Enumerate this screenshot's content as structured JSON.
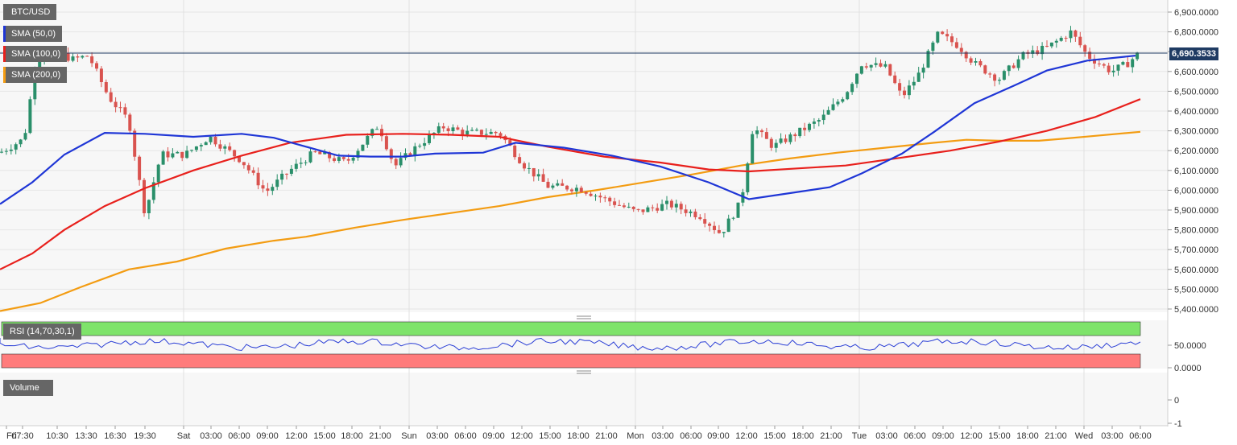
{
  "chart_data": {
    "type": "candlestick",
    "symbol": "BTC/USD",
    "last_price": 6690.3533,
    "last_price_label": "6,690.3533",
    "indicators": [
      {
        "name": "SMA (50,0)",
        "color": "#1f36d6"
      },
      {
        "name": "SMA (100,0)",
        "color": "#e8201c"
      },
      {
        "name": "SMA (200,0)",
        "color": "#f39c12"
      }
    ],
    "price_axis": {
      "min": 5400,
      "max": 6900,
      "ticks": [
        "6,900.0000",
        "6,800.0000",
        "6,700.0000",
        "6,600.0000",
        "6,500.0000",
        "6,400.0000",
        "6,300.0000",
        "6,200.0000",
        "6,100.0000",
        "6,000.0000",
        "5,900.0000",
        "5,800.0000",
        "5,700.0000",
        "5,600.0000",
        "5,500.0000",
        "5,400.0000"
      ]
    },
    "time_axis": {
      "labels": [
        "Fri",
        "07:30",
        "10:30",
        "13:30",
        "16:30",
        "19:30",
        "Sat",
        "03:00",
        "06:00",
        "09:00",
        "12:00",
        "15:00",
        "18:00",
        "21:00",
        "Sun",
        "03:00",
        "06:00",
        "09:00",
        "12:00",
        "15:00",
        "18:00",
        "21:00",
        "Mon",
        "03:00",
        "06:00",
        "09:00",
        "12:00",
        "15:00",
        "18:00",
        "21:00",
        "Tue",
        "03:00",
        "06:00",
        "09:00",
        "12:00",
        "15:00",
        "18:00",
        "21:00",
        "Wed",
        "03:00",
        "06:00"
      ]
    },
    "sma_series": {
      "sma50": [
        [
          0,
          5930
        ],
        [
          40,
          6040
        ],
        [
          80,
          6180
        ],
        [
          130,
          6290
        ],
        [
          180,
          6285
        ],
        [
          240,
          6270
        ],
        [
          300,
          6285
        ],
        [
          340,
          6265
        ],
        [
          380,
          6220
        ],
        [
          420,
          6175
        ],
        [
          460,
          6170
        ],
        [
          500,
          6170
        ],
        [
          540,
          6185
        ],
        [
          600,
          6190
        ],
        [
          640,
          6240
        ],
        [
          700,
          6215
        ],
        [
          760,
          6175
        ],
        [
          820,
          6120
        ],
        [
          880,
          6040
        ],
        [
          930,
          5955
        ],
        [
          980,
          5985
        ],
        [
          1030,
          6015
        ],
        [
          1070,
          6085
        ],
        [
          1120,
          6185
        ],
        [
          1160,
          6295
        ],
        [
          1210,
          6440
        ],
        [
          1260,
          6530
        ],
        [
          1300,
          6605
        ],
        [
          1350,
          6655
        ],
        [
          1410,
          6680
        ]
      ],
      "sma100": [
        [
          0,
          5600
        ],
        [
          40,
          5680
        ],
        [
          80,
          5800
        ],
        [
          130,
          5920
        ],
        [
          180,
          6010
        ],
        [
          240,
          6100
        ],
        [
          300,
          6175
        ],
        [
          360,
          6240
        ],
        [
          430,
          6280
        ],
        [
          500,
          6285
        ],
        [
          560,
          6280
        ],
        [
          620,
          6270
        ],
        [
          680,
          6220
        ],
        [
          750,
          6170
        ],
        [
          820,
          6140
        ],
        [
          880,
          6105
        ],
        [
          930,
          6095
        ],
        [
          990,
          6110
        ],
        [
          1050,
          6125
        ],
        [
          1120,
          6165
        ],
        [
          1180,
          6200
        ],
        [
          1240,
          6245
        ],
        [
          1300,
          6300
        ],
        [
          1360,
          6370
        ],
        [
          1416,
          6460
        ]
      ],
      "sma200": [
        [
          0,
          5390
        ],
        [
          50,
          5430
        ],
        [
          100,
          5510
        ],
        [
          160,
          5600
        ],
        [
          220,
          5640
        ],
        [
          280,
          5705
        ],
        [
          340,
          5745
        ],
        [
          380,
          5765
        ],
        [
          440,
          5810
        ],
        [
          500,
          5850
        ],
        [
          560,
          5885
        ],
        [
          620,
          5920
        ],
        [
          680,
          5965
        ],
        [
          740,
          6000
        ],
        [
          800,
          6040
        ],
        [
          860,
          6080
        ],
        [
          920,
          6125
        ],
        [
          980,
          6160
        ],
        [
          1040,
          6190
        ],
        [
          1100,
          6215
        ],
        [
          1160,
          6240
        ],
        [
          1200,
          6255
        ],
        [
          1240,
          6250
        ],
        [
          1290,
          6250
        ],
        [
          1320,
          6260
        ],
        [
          1360,
          6275
        ],
        [
          1416,
          6295
        ]
      ]
    },
    "rsi": {
      "label": "RSI (14,70,30,1)",
      "ticks": [
        "50.0000",
        "0.0000"
      ],
      "overbought": 70,
      "oversold": 30
    },
    "volume": {
      "label": "Volume",
      "ticks": [
        "0",
        "-1"
      ]
    },
    "colors": {
      "up": "#2a8f6a",
      "down": "#d9534f",
      "grid": "#e6e6e6",
      "background": "#f6f6f6"
    }
  }
}
